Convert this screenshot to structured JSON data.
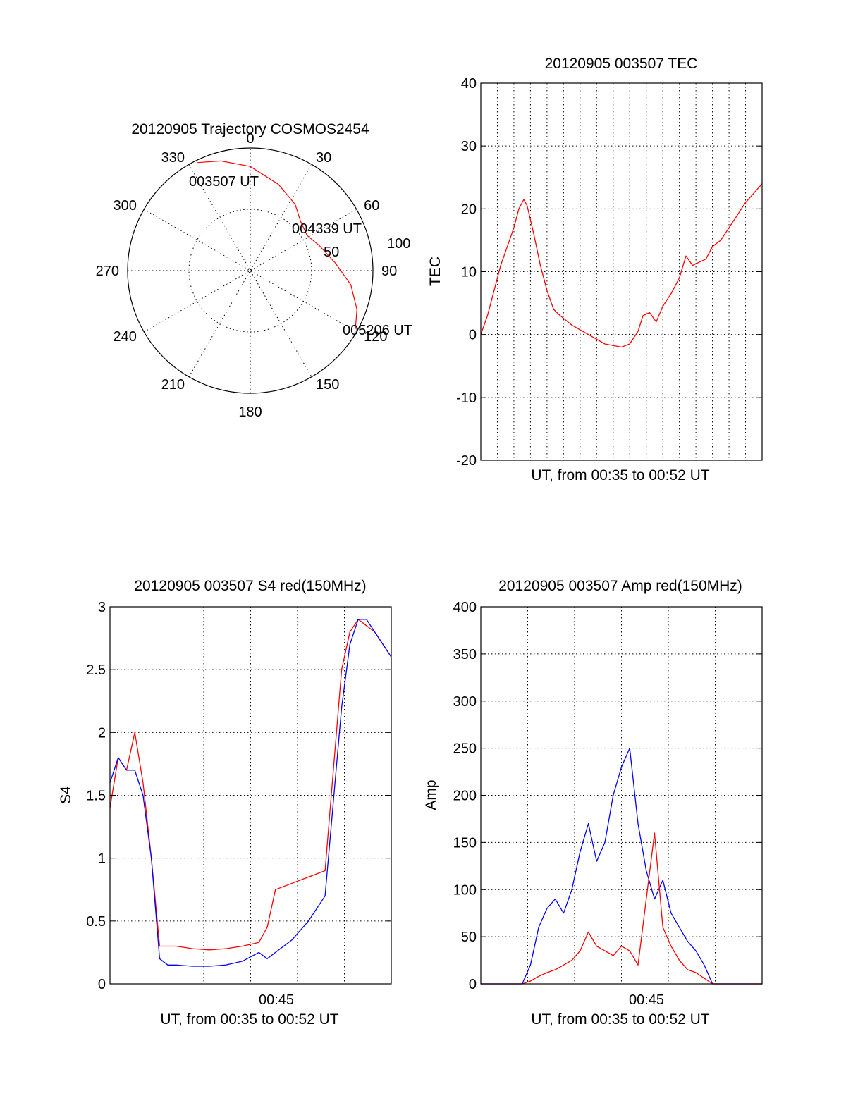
{
  "colors": {
    "red": "#ff0000",
    "blue": "#0000ff",
    "axes": "#000000",
    "background": "#ffffff"
  },
  "chart_data": [
    {
      "id": "polar",
      "type": "polar-trajectory",
      "title": "20120905 Trajectory COSMOS2454",
      "azimuth_labels": [
        "0",
        "30",
        "60",
        "90",
        "120",
        "150",
        "180",
        "210",
        "240",
        "270",
        "300",
        "330"
      ],
      "elevation_ring_labels": [
        "50",
        "100"
      ],
      "series": [
        {
          "color": "red",
          "points": [
            {
              "az": 334,
              "el": 0
            },
            {
              "az": 345,
              "el": 5
            },
            {
              "az": 0,
              "el": 12
            },
            {
              "az": 18,
              "el": 22
            },
            {
              "az": 34,
              "el": 30
            },
            {
              "az": 45,
              "el": 37
            },
            {
              "az": 58,
              "el": 40
            },
            {
              "az": 70,
              "el": 35
            },
            {
              "az": 85,
              "el": 26
            },
            {
              "az": 98,
              "el": 14
            },
            {
              "az": 110,
              "el": 5
            },
            {
              "az": 119,
              "el": 0
            }
          ]
        }
      ],
      "annotations": [
        {
          "text": "003507 UT",
          "az": 334,
          "el": 0
        },
        {
          "text": "004339 UT",
          "az": 58,
          "el": 40
        },
        {
          "text": "005206 UT",
          "az": 119,
          "el": 0
        }
      ]
    },
    {
      "id": "tec",
      "type": "line",
      "title": "20120905 003507 TEC",
      "xlabel": "UT, from 00:35 to 00:52 UT",
      "ylabel": "TEC",
      "xlim": [
        0,
        17
      ],
      "ylim": [
        -20,
        40
      ],
      "yticks": [
        "-20",
        "-10",
        "0",
        "10",
        "20",
        "30",
        "40"
      ],
      "grid": true,
      "series": [
        {
          "color": "red",
          "x": [
            0,
            0.4,
            0.8,
            1.2,
            1.6,
            2.0,
            2.3,
            2.6,
            2.8,
            3.2,
            3.6,
            4.0,
            4.4,
            4.8,
            5.5,
            6.5,
            7.5,
            8.5,
            9.0,
            9.5,
            9.8,
            10.2,
            10.6,
            11.0,
            11.5,
            12.0,
            12.4,
            12.8,
            13.2,
            13.6,
            14.0,
            14.5,
            15.0,
            15.5,
            16.0,
            16.5,
            17.0
          ],
          "y": [
            0,
            3,
            7,
            11,
            14,
            17,
            20,
            21.5,
            20.5,
            16,
            11,
            7,
            4,
            3,
            1.5,
            0,
            -1.5,
            -2,
            -1.5,
            0.5,
            3,
            3.5,
            2,
            4.5,
            6.5,
            9,
            12.5,
            11,
            11.5,
            12,
            14,
            15,
            17,
            19,
            21,
            22.5,
            24
          ]
        }
      ]
    },
    {
      "id": "s4",
      "type": "line",
      "title": "20120905 003507 S4 red(150MHz)",
      "xlabel": "UT, from 00:35 to 00:52 UT",
      "ylabel": "S4",
      "xlim": [
        0,
        17
      ],
      "ylim": [
        0,
        3
      ],
      "xticks": [
        {
          "x": 10,
          "label": "00:45"
        }
      ],
      "yticks": [
        "0",
        "0.5",
        "1",
        "1.5",
        "2",
        "2.5",
        "3"
      ],
      "grid": true,
      "series": [
        {
          "color": "red",
          "x": [
            0,
            0.5,
            1.0,
            1.5,
            2.0,
            2.5,
            3.0,
            3.5,
            4.0,
            5.0,
            6.0,
            7.0,
            8.0,
            9.0,
            9.5,
            10.0,
            11.0,
            12.0,
            13.0,
            14.0,
            14.5,
            15.0,
            15.5,
            16.0,
            16.5,
            17.0
          ],
          "y": [
            1.4,
            1.8,
            1.7,
            2.0,
            1.6,
            1.0,
            0.3,
            0.3,
            0.3,
            0.28,
            0.27,
            0.28,
            0.3,
            0.33,
            0.45,
            0.75,
            0.8,
            0.85,
            0.9,
            2.5,
            2.8,
            2.9,
            2.85,
            2.8,
            2.7,
            2.6
          ]
        },
        {
          "color": "blue",
          "x": [
            0,
            0.5,
            1.0,
            1.5,
            2.0,
            2.5,
            3.0,
            3.5,
            4.0,
            5.0,
            6.0,
            7.0,
            8.0,
            9.0,
            9.5,
            10.0,
            11.0,
            12.0,
            13.0,
            14.0,
            14.5,
            15.0,
            15.5,
            16.0,
            16.5,
            17.0
          ],
          "y": [
            1.6,
            1.8,
            1.7,
            1.7,
            1.5,
            1.0,
            0.2,
            0.15,
            0.15,
            0.14,
            0.14,
            0.15,
            0.18,
            0.25,
            0.2,
            0.25,
            0.35,
            0.5,
            0.7,
            2.2,
            2.7,
            2.9,
            2.9,
            2.8,
            2.7,
            2.6
          ]
        }
      ]
    },
    {
      "id": "amp",
      "type": "line",
      "title": "20120905 003507 Amp red(150MHz)",
      "xlabel": "UT, from 00:35 to 00:52 UT",
      "ylabel": "Amp",
      "xlim": [
        0,
        17
      ],
      "ylim": [
        0,
        400
      ],
      "xticks": [
        {
          "x": 10,
          "label": "00:45"
        }
      ],
      "yticks": [
        "0",
        "50",
        "100",
        "150",
        "200",
        "250",
        "300",
        "350",
        "400"
      ],
      "grid": true,
      "series": [
        {
          "color": "blue",
          "x": [
            0,
            2.5,
            3.0,
            3.5,
            4.0,
            4.5,
            5.0,
            5.5,
            6.0,
            6.5,
            7.0,
            7.5,
            8.0,
            8.5,
            9.0,
            9.5,
            10.0,
            10.5,
            11.0,
            11.5,
            12.0,
            12.5,
            13.0,
            13.5,
            14.0,
            17.0
          ],
          "y": [
            0,
            0,
            20,
            60,
            80,
            90,
            75,
            100,
            140,
            170,
            130,
            150,
            200,
            230,
            250,
            170,
            120,
            90,
            110,
            75,
            60,
            45,
            35,
            20,
            0,
            0
          ]
        },
        {
          "color": "red",
          "x": [
            0,
            2.5,
            3.0,
            3.5,
            4.0,
            4.5,
            5.0,
            5.5,
            6.0,
            6.5,
            7.0,
            7.5,
            8.0,
            8.5,
            9.0,
            9.5,
            10.0,
            10.5,
            11.0,
            11.5,
            12.0,
            12.5,
            13.0,
            13.5,
            14.0,
            17.0
          ],
          "y": [
            0,
            0,
            3,
            8,
            12,
            15,
            20,
            25,
            35,
            55,
            40,
            35,
            30,
            40,
            35,
            20,
            90,
            160,
            60,
            40,
            25,
            15,
            12,
            6,
            0,
            0
          ]
        }
      ]
    }
  ]
}
